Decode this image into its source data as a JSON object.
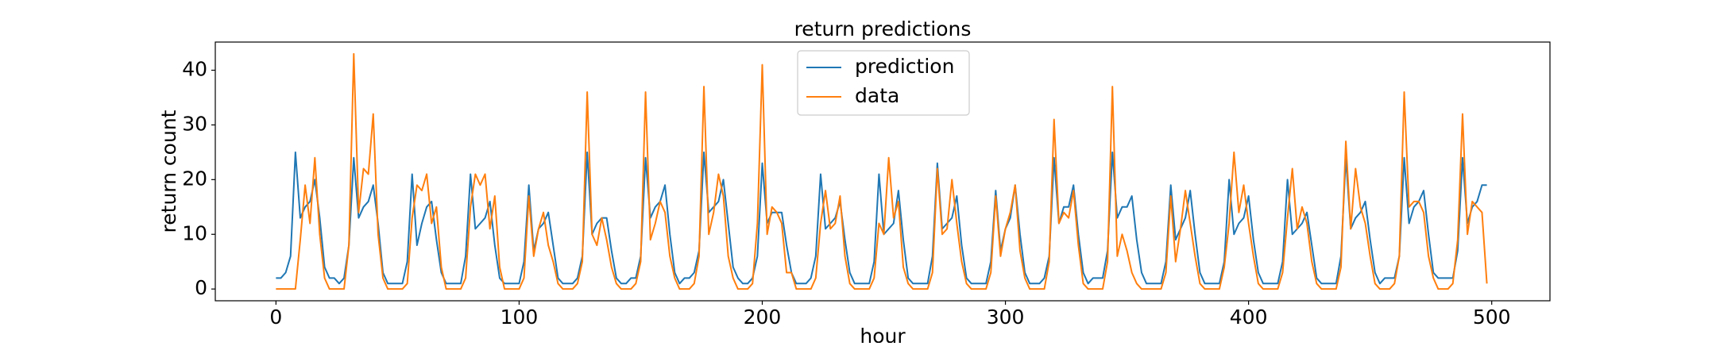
{
  "chart_data": {
    "type": "line",
    "title": "return predictions",
    "x_label": "hour",
    "y_label": "return count",
    "x": [
      0,
      2,
      4,
      6,
      8,
      10,
      12,
      14,
      16,
      18,
      20,
      22,
      24,
      26,
      28,
      30,
      32,
      34,
      36,
      38,
      40,
      42,
      44,
      46,
      48,
      50,
      52,
      54,
      56,
      58,
      60,
      62,
      64,
      66,
      68,
      70,
      72,
      74,
      76,
      78,
      80,
      82,
      84,
      86,
      88,
      90,
      92,
      94,
      96,
      98,
      100,
      102,
      104,
      106,
      108,
      110,
      112,
      114,
      116,
      118,
      120,
      122,
      124,
      126,
      128,
      130,
      132,
      134,
      136,
      138,
      140,
      142,
      144,
      146,
      148,
      150,
      152,
      154,
      156,
      158,
      160,
      162,
      164,
      166,
      168,
      170,
      172,
      174,
      176,
      178,
      180,
      182,
      184,
      186,
      188,
      190,
      192,
      194,
      196,
      198,
      200,
      202,
      204,
      206,
      208,
      210,
      212,
      214,
      216,
      218,
      220,
      222,
      224,
      226,
      228,
      230,
      232,
      234,
      236,
      238,
      240,
      242,
      244,
      246,
      248,
      250,
      252,
      254,
      256,
      258,
      260,
      262,
      264,
      266,
      268,
      270,
      272,
      274,
      276,
      278,
      280,
      282,
      284,
      286,
      288,
      290,
      292,
      294,
      296,
      298,
      300,
      302,
      304,
      306,
      308,
      310,
      312,
      314,
      316,
      318,
      320,
      322,
      324,
      326,
      328,
      330,
      332,
      334,
      336,
      338,
      340,
      342,
      344,
      346,
      348,
      350,
      352,
      354,
      356,
      358,
      360,
      362,
      364,
      366,
      368,
      370,
      372,
      374,
      376,
      378,
      380,
      382,
      384,
      386,
      388,
      390,
      392,
      394,
      396,
      398,
      400,
      402,
      404,
      406,
      408,
      410,
      412,
      414,
      416,
      418,
      420,
      422,
      424,
      426,
      428,
      430,
      432,
      434,
      436,
      438,
      440,
      442,
      444,
      446,
      448,
      450,
      452,
      454,
      456,
      458,
      460,
      462,
      464,
      466,
      468,
      470,
      472,
      474,
      476,
      478,
      480,
      482,
      484,
      486,
      488,
      490,
      492,
      494,
      496,
      498
    ],
    "series": [
      {
        "name": "prediction",
        "color": "#1f77b4",
        "values": [
          2,
          2,
          3,
          6,
          25,
          13,
          15,
          16,
          20,
          13,
          4,
          2,
          2,
          1,
          2,
          8,
          24,
          13,
          15,
          16,
          19,
          12,
          3,
          1,
          1,
          1,
          1,
          5,
          21,
          8,
          12,
          15,
          16,
          9,
          3,
          1,
          1,
          1,
          1,
          6,
          21,
          11,
          12,
          13,
          16,
          8,
          2,
          1,
          1,
          1,
          1,
          5,
          19,
          7,
          11,
          12,
          14,
          8,
          2,
          1,
          1,
          1,
          2,
          6,
          25,
          10,
          12,
          13,
          13,
          7,
          2,
          1,
          1,
          2,
          2,
          6,
          24,
          13,
          15,
          16,
          19,
          10,
          3,
          1,
          2,
          2,
          3,
          7,
          25,
          14,
          15,
          16,
          20,
          12,
          4,
          2,
          1,
          1,
          2,
          6,
          23,
          12,
          14,
          14,
          14,
          8,
          3,
          1,
          1,
          1,
          2,
          6,
          21,
          11,
          12,
          13,
          16,
          9,
          3,
          1,
          1,
          1,
          1,
          5,
          21,
          10,
          11,
          12,
          18,
          9,
          2,
          1,
          1,
          1,
          1,
          6,
          23,
          11,
          12,
          13,
          17,
          8,
          2,
          1,
          1,
          1,
          1,
          5,
          18,
          7,
          11,
          13,
          19,
          10,
          3,
          1,
          1,
          1,
          2,
          6,
          24,
          12,
          15,
          15,
          19,
          10,
          3,
          1,
          2,
          2,
          2,
          7,
          25,
          13,
          15,
          15,
          17,
          9,
          3,
          1,
          1,
          1,
          1,
          5,
          19,
          9,
          11,
          13,
          18,
          10,
          3,
          1,
          1,
          1,
          1,
          5,
          20,
          10,
          12,
          13,
          17,
          9,
          3,
          1,
          1,
          1,
          1,
          5,
          20,
          10,
          11,
          12,
          14,
          8,
          2,
          1,
          1,
          1,
          1,
          6,
          24,
          11,
          13,
          14,
          16,
          9,
          3,
          1,
          2,
          2,
          2,
          6,
          24,
          12,
          15,
          16,
          18,
          10,
          3,
          2,
          2,
          2,
          2,
          7,
          24,
          12,
          15,
          16,
          19,
          19
        ]
      },
      {
        "name": "data",
        "color": "#ff7f0e",
        "values": [
          0,
          0,
          0,
          0,
          0,
          9,
          19,
          12,
          24,
          10,
          2,
          0,
          0,
          0,
          0,
          8,
          43,
          14,
          22,
          21,
          32,
          10,
          2,
          0,
          0,
          0,
          0,
          1,
          13,
          19,
          18,
          21,
          12,
          15,
          4,
          0,
          0,
          0,
          0,
          2,
          15,
          21,
          19,
          21,
          11,
          17,
          4,
          0,
          0,
          0,
          0,
          2,
          17,
          6,
          11,
          14,
          8,
          5,
          1,
          0,
          0,
          0,
          1,
          5,
          36,
          10,
          8,
          13,
          9,
          4,
          1,
          0,
          0,
          0,
          1,
          5,
          36,
          9,
          12,
          16,
          14,
          6,
          2,
          0,
          0,
          0,
          1,
          6,
          37,
          10,
          14,
          21,
          17,
          6,
          2,
          0,
          0,
          0,
          1,
          12,
          41,
          10,
          15,
          14,
          12,
          3,
          3,
          0,
          0,
          0,
          0,
          2,
          12,
          18,
          11,
          12,
          17,
          6,
          1,
          0,
          0,
          0,
          0,
          2,
          12,
          10,
          24,
          13,
          16,
          4,
          1,
          0,
          0,
          0,
          0,
          3,
          22,
          10,
          11,
          20,
          12,
          5,
          1,
          0,
          0,
          0,
          0,
          3,
          17,
          6,
          11,
          14,
          19,
          7,
          2,
          0,
          0,
          0,
          0,
          5,
          31,
          12,
          14,
          13,
          18,
          8,
          1,
          0,
          0,
          0,
          0,
          5,
          37,
          6,
          10,
          7,
          3,
          1,
          0,
          0,
          0,
          0,
          0,
          3,
          17,
          5,
          11,
          18,
          12,
          6,
          1,
          0,
          0,
          0,
          0,
          4,
          12,
          25,
          14,
          19,
          12,
          6,
          1,
          0,
          0,
          0,
          0,
          3,
          13,
          22,
          11,
          15,
          12,
          5,
          1,
          0,
          0,
          0,
          0,
          4,
          27,
          11,
          22,
          15,
          12,
          6,
          1,
          0,
          0,
          0,
          1,
          6,
          36,
          15,
          16,
          16,
          14,
          6,
          2,
          0,
          0,
          0,
          1,
          9,
          32,
          10,
          16,
          15,
          14,
          1
        ]
      }
    ],
    "xlim": [
      -24.95,
      523.95
    ],
    "xticks": [
      0,
      100,
      200,
      300,
      400,
      500
    ],
    "ylim": [
      -2.15,
      45.15
    ],
    "yticks": [
      0,
      10,
      20,
      30,
      40
    ],
    "grid": false,
    "legend": "upper center"
  }
}
